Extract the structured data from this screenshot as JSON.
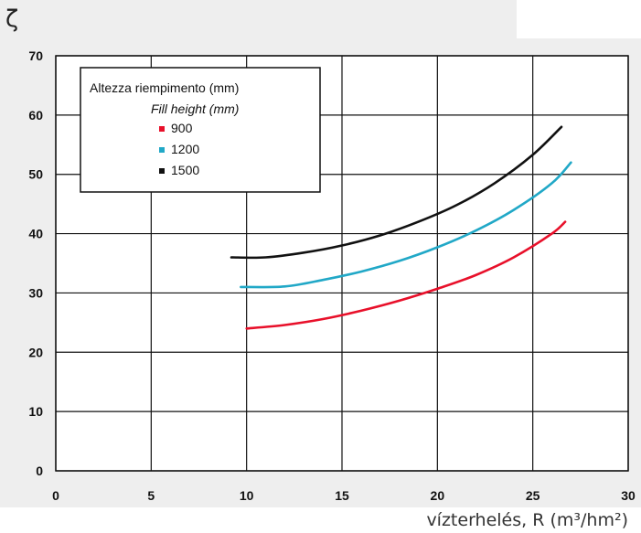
{
  "chart_data": {
    "type": "line",
    "ylabel": "ζ",
    "xlabel": "vízterhelés, R (m³/hm²)",
    "xlim": [
      0,
      30
    ],
    "ylim": [
      0,
      70
    ],
    "xticks": [
      0,
      5,
      10,
      15,
      20,
      25,
      30
    ],
    "yticks": [
      0,
      10,
      20,
      30,
      40,
      50,
      60,
      70
    ],
    "grid": true,
    "legend": {
      "placement": "top-left",
      "title": "Altezza riempimento (mm)",
      "subtitle": "Fill height (mm)"
    },
    "series": [
      {
        "name": "900",
        "color": "#e8102a",
        "x": [
          10,
          12,
          14,
          16,
          18,
          20,
          22,
          24,
          26,
          26.7
        ],
        "y": [
          24,
          24.6,
          25.6,
          27,
          28.7,
          30.7,
          33,
          36,
          40,
          42
        ]
      },
      {
        "name": "1200",
        "color": "#21a8c7",
        "x": [
          9.7,
          12,
          14,
          16,
          18,
          20,
          22,
          24,
          26,
          27
        ],
        "y": [
          31,
          31.1,
          32.2,
          33.6,
          35.4,
          37.7,
          40.5,
          44,
          48.5,
          52
        ]
      },
      {
        "name": "1500",
        "color": "#111111",
        "x": [
          9.2,
          11,
          13,
          15,
          17,
          19,
          21,
          23,
          25,
          26.5
        ],
        "y": [
          36,
          36,
          36.8,
          38,
          39.7,
          42,
          44.8,
          48.5,
          53.3,
          58
        ]
      }
    ]
  }
}
